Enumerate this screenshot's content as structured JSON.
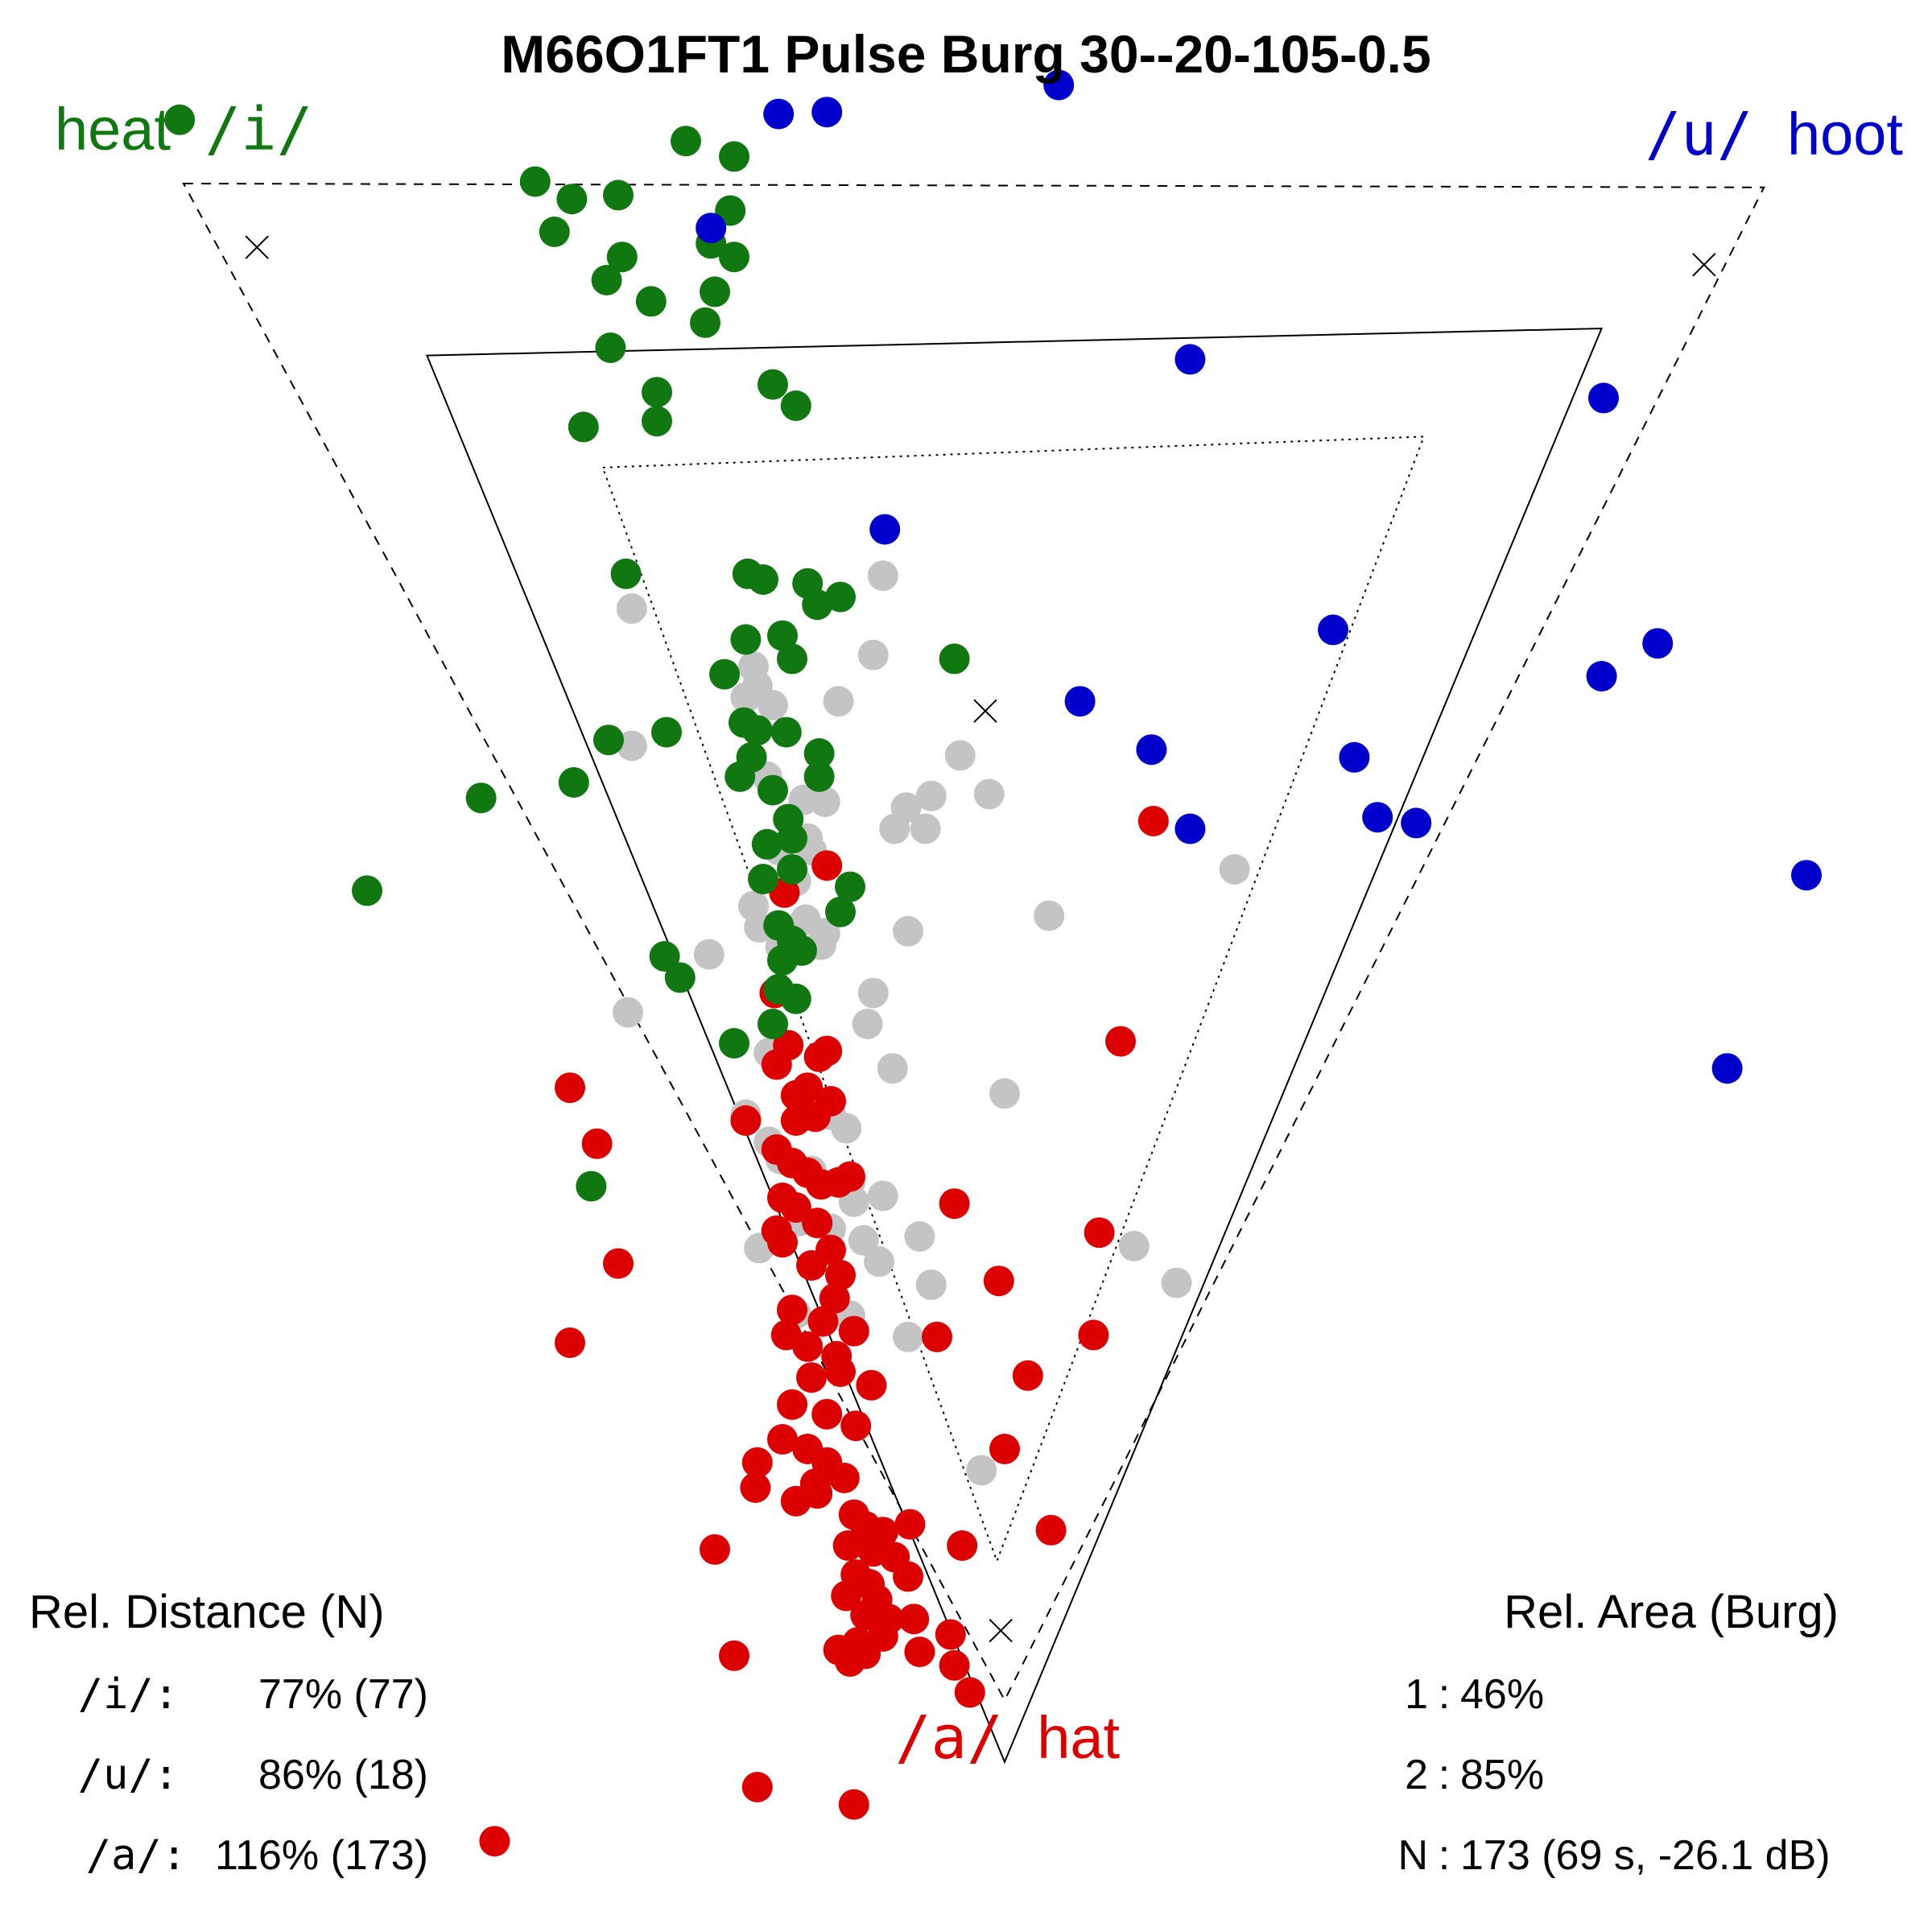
{
  "chart_data": {
    "type": "scatter",
    "title": "M66O1FT1 Pulse Burg 30--20-105-0.5",
    "xlabel": "",
    "ylabel": "",
    "xlim": [
      0,
      1000
    ],
    "ylim": [
      0,
      1000
    ],
    "y_axis_direction": "down",
    "grid": false,
    "corner_labels": [
      {
        "word": "heat",
        "symbol": "/i/",
        "color": "#117711",
        "anchor": "start",
        "position": "top-left"
      },
      {
        "word": "hoot",
        "symbol": "/u/",
        "color": "#0000cc",
        "anchor": "end",
        "position": "top-right"
      },
      {
        "word": "hat",
        "symbol": "/a/",
        "color": "#dd0000",
        "anchor": "start",
        "position": "bottom-center"
      }
    ],
    "triangles": [
      {
        "name": "outer",
        "style": "dashed",
        "points": [
          [
            95,
            95
          ],
          [
            913,
            97
          ],
          [
            520,
            880
          ]
        ]
      },
      {
        "name": "middle",
        "style": "solid",
        "points": [
          [
            221,
            184
          ],
          [
            829,
            170
          ],
          [
            520,
            912
          ]
        ]
      },
      {
        "name": "inner",
        "style": "dotted",
        "points": [
          [
            312,
            242
          ],
          [
            737,
            226
          ],
          [
            516,
            808
          ]
        ]
      }
    ],
    "cross_markers": [
      [
        133,
        128
      ],
      [
        882,
        137
      ],
      [
        510,
        368
      ],
      [
        518,
        844
      ]
    ],
    "series": [
      {
        "name": "/i/ heat",
        "color": "#117711",
        "points": [
          [
            93,
            62
          ],
          [
            355,
            73
          ],
          [
            380,
            81
          ],
          [
            277,
            94
          ],
          [
            296,
            103
          ],
          [
            320,
            101
          ],
          [
            287,
            120
          ],
          [
            378,
            109
          ],
          [
            368,
            126
          ],
          [
            322,
            133
          ],
          [
            314,
            145
          ],
          [
            380,
            133
          ],
          [
            337,
            156
          ],
          [
            370,
            151
          ],
          [
            365,
            167
          ],
          [
            316,
            180
          ],
          [
            340,
            203
          ],
          [
            340,
            218
          ],
          [
            400,
            199
          ],
          [
            412,
            210
          ],
          [
            302,
            221
          ],
          [
            324,
            297
          ],
          [
            387,
            297
          ],
          [
            395,
            300
          ],
          [
            418,
            302
          ],
          [
            435,
            309
          ],
          [
            423,
            313
          ],
          [
            405,
            329
          ],
          [
            386,
            331
          ],
          [
            410,
            341
          ],
          [
            375,
            349
          ],
          [
            494,
            341
          ],
          [
            345,
            379
          ],
          [
            385,
            374
          ],
          [
            392,
            378
          ],
          [
            407,
            379
          ],
          [
            424,
            390
          ],
          [
            389,
            392
          ],
          [
            383,
            402
          ],
          [
            315,
            383
          ],
          [
            424,
            402
          ],
          [
            297,
            405
          ],
          [
            249,
            413
          ],
          [
            400,
            409
          ],
          [
            408,
            424
          ],
          [
            410,
            434
          ],
          [
            397,
            437
          ],
          [
            190,
            461
          ],
          [
            395,
            455
          ],
          [
            410,
            450
          ],
          [
            440,
            459
          ],
          [
            435,
            472
          ],
          [
            403,
            479
          ],
          [
            410,
            487
          ],
          [
            415,
            492
          ],
          [
            405,
            497
          ],
          [
            344,
            495
          ],
          [
            352,
            506
          ],
          [
            403,
            512
          ],
          [
            412,
            517
          ],
          [
            400,
            530
          ],
          [
            380,
            540
          ],
          [
            306,
            614
          ]
        ]
      },
      {
        "name": "/u/ hoot",
        "color": "#0000cc",
        "points": [
          [
            548,
            44
          ],
          [
            403,
            59
          ],
          [
            428,
            58
          ],
          [
            368,
            118
          ],
          [
            616,
            186
          ],
          [
            830,
            206
          ],
          [
            458,
            274
          ],
          [
            690,
            326
          ],
          [
            858,
            333
          ],
          [
            829,
            350
          ],
          [
            559,
            363
          ],
          [
            596,
            388
          ],
          [
            701,
            392
          ],
          [
            713,
            423
          ],
          [
            616,
            429
          ],
          [
            733,
            426
          ],
          [
            935,
            453
          ],
          [
            894,
            553
          ]
        ]
      },
      {
        "name": "/a/ hat",
        "color": "#dd0000",
        "points": [
          [
            597,
            425
          ],
          [
            428,
            448
          ],
          [
            406,
            462
          ],
          [
            401,
            514
          ],
          [
            580,
            539
          ],
          [
            424,
            547
          ],
          [
            408,
            541
          ],
          [
            428,
            544
          ],
          [
            402,
            551
          ],
          [
            295,
            563
          ],
          [
            418,
            563
          ],
          [
            412,
            567
          ],
          [
            430,
            570
          ],
          [
            386,
            580
          ],
          [
            412,
            580
          ],
          [
            422,
            578
          ],
          [
            309,
            592
          ],
          [
            402,
            595
          ],
          [
            410,
            602
          ],
          [
            418,
            607
          ],
          [
            425,
            613
          ],
          [
            405,
            620
          ],
          [
            434,
            612
          ],
          [
            440,
            609
          ],
          [
            412,
            625
          ],
          [
            423,
            633
          ],
          [
            494,
            623
          ],
          [
            402,
            637
          ],
          [
            405,
            643
          ],
          [
            430,
            647
          ],
          [
            569,
            638
          ],
          [
            420,
            655
          ],
          [
            435,
            660
          ],
          [
            517,
            663
          ],
          [
            320,
            654
          ],
          [
            432,
            672
          ],
          [
            410,
            678
          ],
          [
            426,
            684
          ],
          [
            442,
            689
          ],
          [
            566,
            691
          ],
          [
            485,
            692
          ],
          [
            407,
            691
          ],
          [
            418,
            697
          ],
          [
            433,
            702
          ],
          [
            295,
            695
          ],
          [
            435,
            710
          ],
          [
            420,
            713
          ],
          [
            451,
            717
          ],
          [
            532,
            712
          ],
          [
            410,
            727
          ],
          [
            428,
            732
          ],
          [
            443,
            738
          ],
          [
            405,
            745
          ],
          [
            418,
            750
          ],
          [
            428,
            757
          ],
          [
            520,
            750
          ],
          [
            392,
            757
          ],
          [
            437,
            765
          ],
          [
            422,
            768
          ],
          [
            391,
            770
          ],
          [
            412,
            777
          ],
          [
            423,
            773
          ],
          [
            442,
            784
          ],
          [
            448,
            790
          ],
          [
            457,
            793
          ],
          [
            471,
            789
          ],
          [
            498,
            800
          ],
          [
            439,
            800
          ],
          [
            452,
            803
          ],
          [
            463,
            806
          ],
          [
            544,
            792
          ],
          [
            370,
            802
          ],
          [
            443,
            815
          ],
          [
            450,
            820
          ],
          [
            470,
            816
          ],
          [
            438,
            826
          ],
          [
            454,
            828
          ],
          [
            448,
            836
          ],
          [
            460,
            838
          ],
          [
            473,
            838
          ],
          [
            457,
            847
          ],
          [
            476,
            855
          ],
          [
            444,
            850
          ],
          [
            492,
            846
          ],
          [
            434,
            854
          ],
          [
            448,
            856
          ],
          [
            494,
            862
          ],
          [
            380,
            857
          ],
          [
            440,
            860
          ],
          [
            502,
            876
          ],
          [
            392,
            925
          ],
          [
            442,
            934
          ],
          [
            256,
            953
          ]
        ]
      },
      {
        "name": "other",
        "color": "#c4c4c4",
        "points": [
          [
            457,
            298
          ],
          [
            327,
            315
          ],
          [
            452,
            339
          ],
          [
            390,
            345
          ],
          [
            392,
            355
          ],
          [
            386,
            361
          ],
          [
            434,
            363
          ],
          [
            400,
            365
          ],
          [
            327,
            386
          ],
          [
            497,
            391
          ],
          [
            397,
            402
          ],
          [
            427,
            415
          ],
          [
            482,
            412
          ],
          [
            469,
            418
          ],
          [
            512,
            411
          ],
          [
            463,
            429
          ],
          [
            479,
            429
          ],
          [
            416,
            414
          ],
          [
            418,
            434
          ],
          [
            403,
            440
          ],
          [
            420,
            440
          ],
          [
            412,
            456
          ],
          [
            639,
            450
          ],
          [
            390,
            469
          ],
          [
            393,
            480
          ],
          [
            543,
            474
          ],
          [
            417,
            476
          ],
          [
            470,
            482
          ],
          [
            425,
            489
          ],
          [
            367,
            494
          ],
          [
            427,
            483
          ],
          [
            404,
            490
          ],
          [
            325,
            524
          ],
          [
            452,
            514
          ],
          [
            449,
            530
          ],
          [
            462,
            553
          ],
          [
            398,
            545
          ],
          [
            520,
            566
          ],
          [
            386,
            577
          ],
          [
            430,
            577
          ],
          [
            438,
            584
          ],
          [
            398,
            591
          ],
          [
            404,
            600
          ],
          [
            420,
            606
          ],
          [
            440,
            612
          ],
          [
            457,
            619
          ],
          [
            442,
            622
          ],
          [
            414,
            632
          ],
          [
            430,
            636
          ],
          [
            476,
            640
          ],
          [
            447,
            642
          ],
          [
            393,
            646
          ],
          [
            455,
            653
          ],
          [
            587,
            645
          ],
          [
            482,
            665
          ],
          [
            609,
            664
          ],
          [
            440,
            681
          ],
          [
            412,
            680
          ],
          [
            470,
            692
          ],
          [
            508,
            761
          ]
        ]
      }
    ],
    "legend_left": {
      "heading": "Rel. Distance (N)",
      "rows": [
        {
          "label": "/i/:",
          "value": "77% (77)"
        },
        {
          "label": "/u/:",
          "value": "86% (18)"
        },
        {
          "label": "/a/:",
          "value": "116% (173)"
        }
      ]
    },
    "legend_right": {
      "heading": "Rel. Area (Burg)",
      "rows": [
        {
          "label": "1",
          "value": "46%"
        },
        {
          "label": "2",
          "value": "85%"
        },
        {
          "label": "N",
          "value": "173 (69 s, -26.1 dB)"
        }
      ]
    }
  }
}
